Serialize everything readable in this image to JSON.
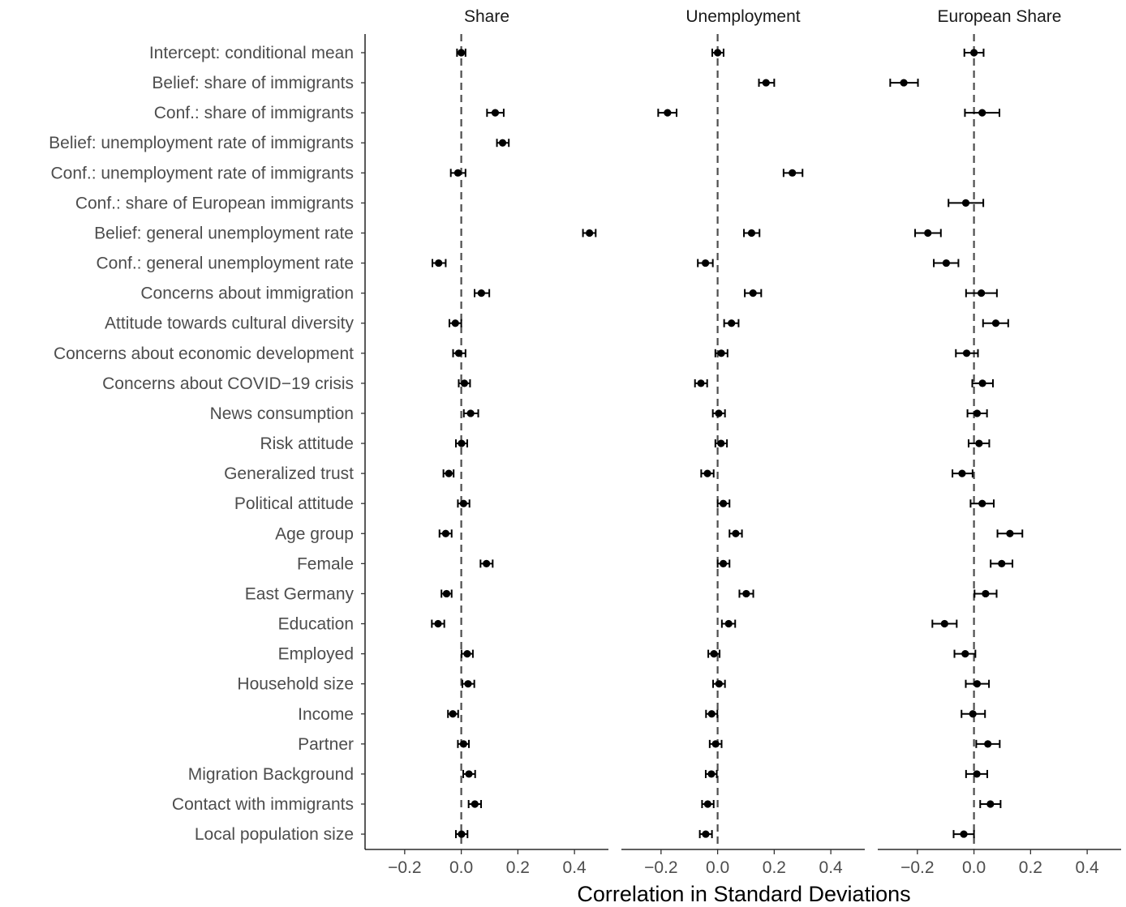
{
  "chart_data": {
    "type": "dot-errorbar",
    "xlabel": "Correlation in Standard Deviations",
    "xlim": [
      -0.34,
      0.52
    ],
    "xticks": [
      -0.2,
      0.0,
      0.2,
      0.4
    ],
    "xtick_labels": [
      "−0.2",
      "0.0",
      "0.2",
      "0.4"
    ],
    "reference_line": 0,
    "grid": false,
    "categories": [
      "Intercept: conditional mean",
      "Belief: share of immigrants",
      "Conf.: share of immigrants",
      "Belief: unemployment rate of immigrants",
      "Conf.: unemployment rate of immigrants",
      "Conf.: share of European immigrants",
      "Belief: general unemployment rate",
      "Conf.: general unemployment rate",
      "Concerns about immigration",
      "Attitude towards cultural diversity",
      "Concerns about economic development",
      "Concerns about COVID−19 crisis",
      "News consumption",
      "Risk attitude",
      "Generalized trust",
      "Political attitude",
      "Age group",
      "Female",
      "East Germany",
      "Education",
      "Employed",
      "Household size",
      "Income",
      "Partner",
      "Migration Background",
      "Contact with immigrants",
      "Local population size"
    ],
    "panels": [
      {
        "title": "Share",
        "estimates": [
          0.0,
          null,
          0.12,
          0.146,
          -0.012,
          null,
          0.453,
          -0.08,
          0.071,
          -0.021,
          -0.009,
          0.011,
          0.033,
          0.001,
          -0.044,
          0.008,
          -0.055,
          0.089,
          -0.052,
          -0.082,
          0.021,
          0.024,
          -0.03,
          0.008,
          0.027,
          0.048,
          0.001
        ],
        "lower": [
          -0.015,
          null,
          0.091,
          0.126,
          -0.037,
          null,
          0.43,
          -0.102,
          0.047,
          -0.042,
          -0.029,
          -0.009,
          0.009,
          -0.019,
          -0.063,
          -0.012,
          -0.077,
          0.068,
          -0.07,
          -0.104,
          0.001,
          0.004,
          -0.047,
          -0.012,
          0.007,
          0.026,
          -0.019
        ],
        "upper": [
          0.015,
          null,
          0.15,
          0.168,
          0.015,
          null,
          0.475,
          -0.055,
          0.099,
          0.0,
          0.015,
          0.031,
          0.06,
          0.021,
          -0.027,
          0.029,
          -0.034,
          0.111,
          -0.034,
          -0.06,
          0.041,
          0.046,
          -0.011,
          0.027,
          0.049,
          0.07,
          0.022
        ]
      },
      {
        "title": "Unemployment",
        "estimates": [
          0.0,
          0.171,
          -0.177,
          null,
          0.264,
          null,
          0.12,
          -0.043,
          0.125,
          0.049,
          0.013,
          -0.059,
          0.004,
          0.012,
          -0.036,
          0.02,
          0.064,
          0.02,
          0.101,
          0.039,
          -0.013,
          0.005,
          -0.021,
          -0.007,
          -0.022,
          -0.035,
          -0.042
        ],
        "lower": [
          -0.019,
          0.146,
          -0.21,
          null,
          0.233,
          null,
          0.093,
          -0.07,
          0.096,
          0.023,
          -0.008,
          -0.08,
          -0.017,
          -0.008,
          -0.058,
          0.0,
          0.042,
          0.0,
          0.077,
          0.015,
          -0.033,
          -0.016,
          -0.041,
          -0.028,
          -0.042,
          -0.055,
          -0.063
        ],
        "upper": [
          0.021,
          0.2,
          -0.145,
          null,
          0.3,
          null,
          0.148,
          -0.017,
          0.154,
          0.074,
          0.035,
          -0.037,
          0.026,
          0.033,
          -0.014,
          0.042,
          0.086,
          0.042,
          0.126,
          0.062,
          0.007,
          0.026,
          -0.001,
          0.014,
          -0.003,
          -0.014,
          -0.02
        ]
      },
      {
        "title": "European Share",
        "estimates": [
          0.0,
          -0.248,
          0.029,
          null,
          null,
          -0.029,
          -0.163,
          -0.098,
          0.026,
          0.077,
          -0.026,
          0.03,
          0.011,
          0.018,
          -0.042,
          0.029,
          0.127,
          0.098,
          0.041,
          -0.104,
          -0.031,
          0.011,
          -0.004,
          0.049,
          0.01,
          0.058,
          -0.036
        ],
        "lower": [
          -0.034,
          -0.296,
          -0.032,
          null,
          null,
          -0.09,
          -0.208,
          -0.142,
          -0.028,
          0.032,
          -0.064,
          -0.006,
          -0.023,
          -0.019,
          -0.076,
          -0.012,
          0.083,
          0.059,
          0.002,
          -0.147,
          -0.069,
          -0.029,
          -0.044,
          0.008,
          -0.028,
          0.022,
          -0.072
        ],
        "upper": [
          0.034,
          -0.198,
          0.09,
          null,
          null,
          0.033,
          -0.117,
          -0.055,
          0.081,
          0.121,
          0.014,
          0.067,
          0.046,
          0.054,
          -0.005,
          0.07,
          0.171,
          0.136,
          0.08,
          -0.061,
          0.005,
          0.053,
          0.039,
          0.091,
          0.047,
          0.094,
          0.0
        ]
      }
    ]
  }
}
